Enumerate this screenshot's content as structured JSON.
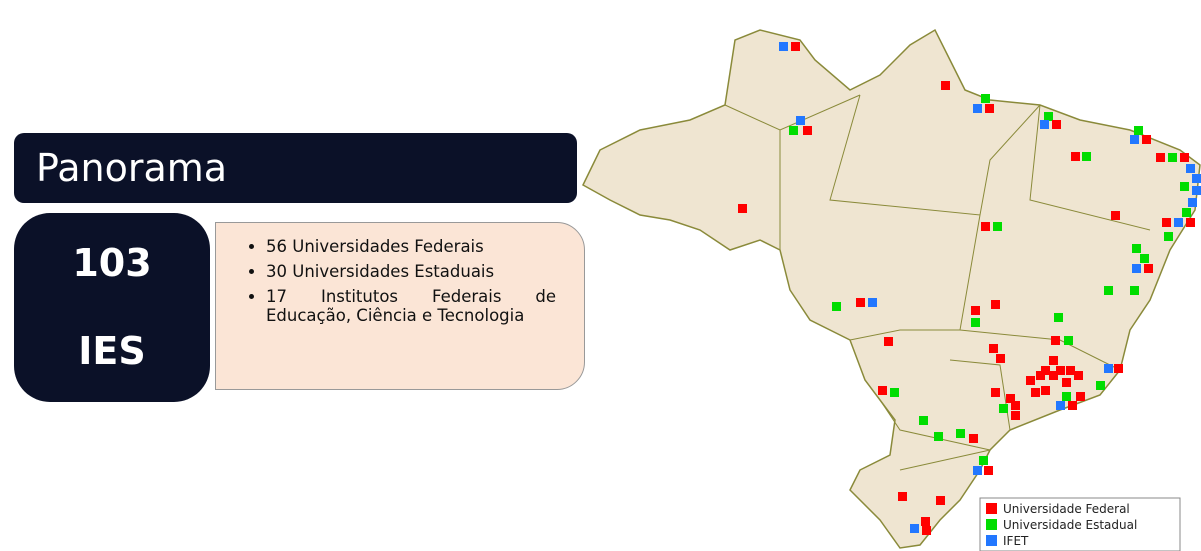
{
  "title": "Panorama",
  "summary": {
    "number": "103",
    "label": "IES"
  },
  "bullets": [
    "56 Universidades Federais",
    "30 Universidades Estaduais",
    "17 Institutos Federais de Educação, Ciência e Tecnologia"
  ],
  "legend": [
    {
      "name": "Universidade Federal",
      "color": "#ff0000"
    },
    {
      "name": "Universidade Estadual",
      "color": "#00dd00"
    },
    {
      "name": "IFET",
      "color": "#2277ff"
    }
  ]
}
